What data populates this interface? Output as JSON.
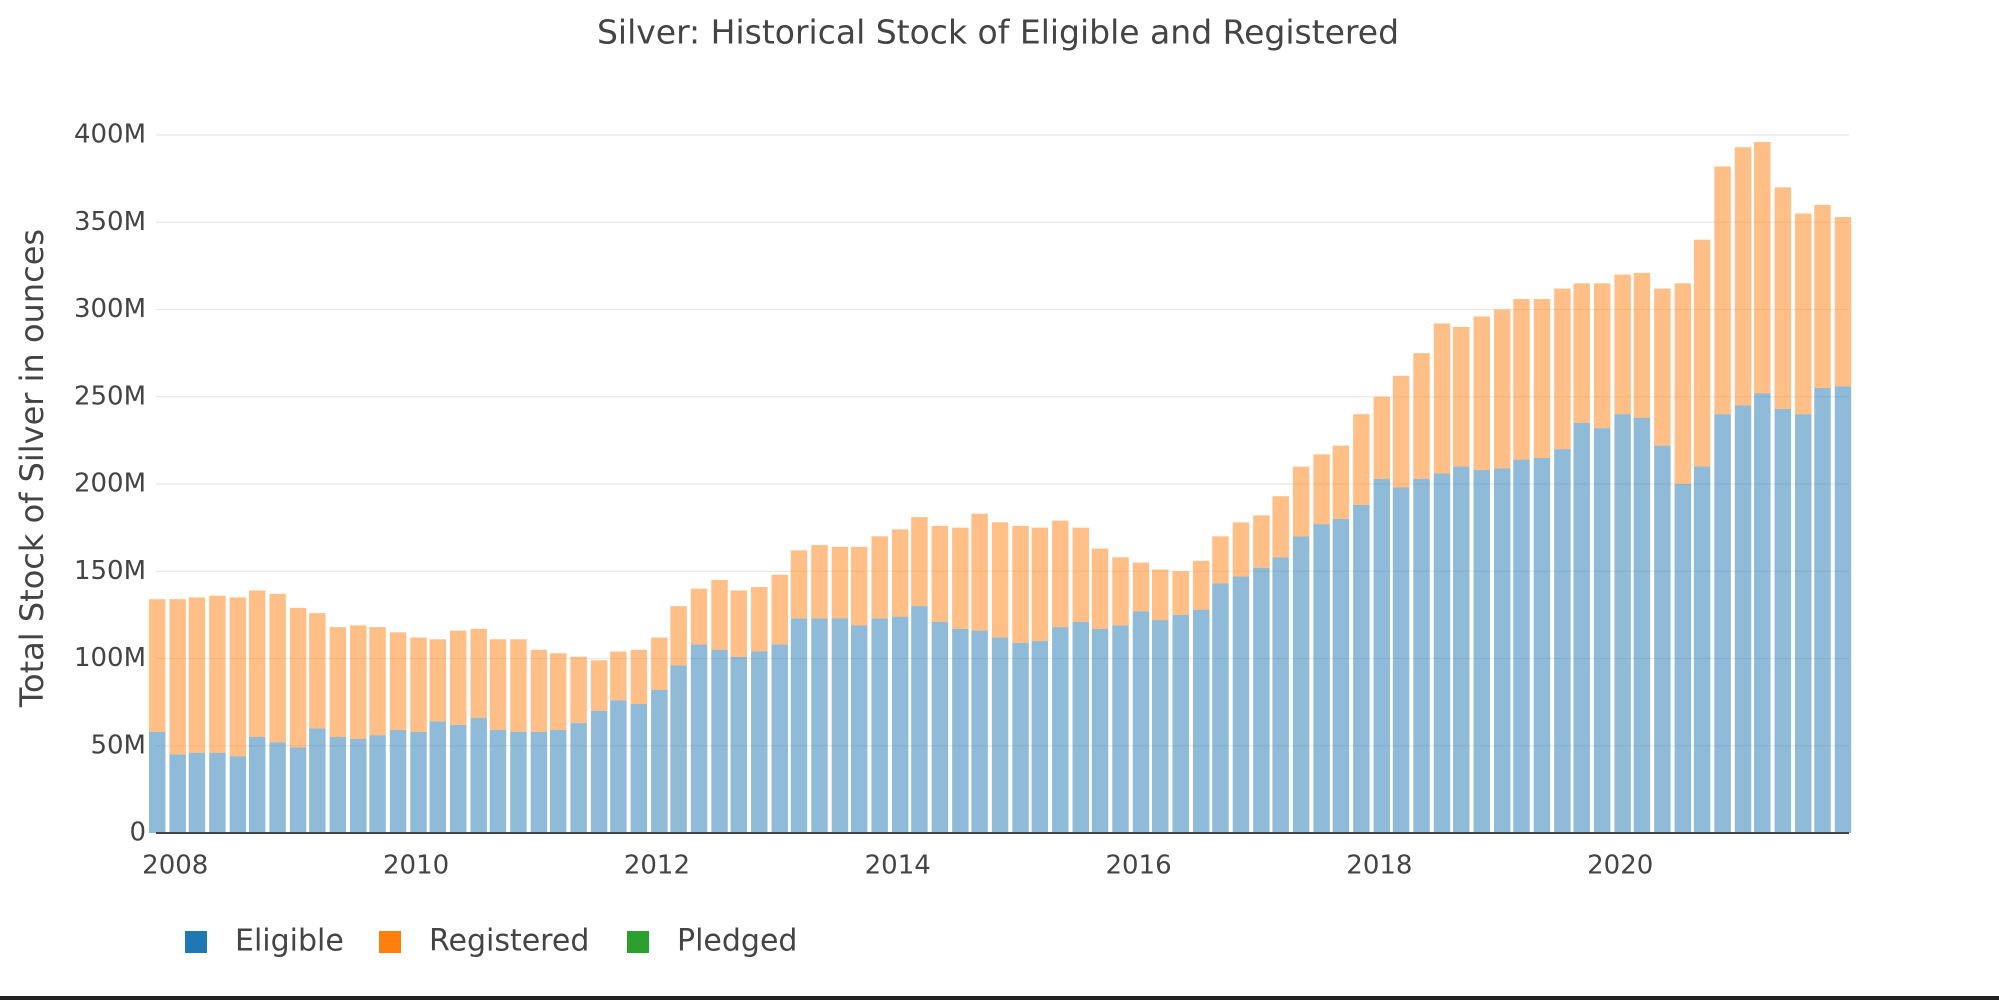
{
  "chart_data": {
    "type": "stacked_bar",
    "title": "Silver: Historical Stock of Eligible and Registered",
    "y_label": "Total Stock of Silver in ounces",
    "x": [
      2007.85,
      2008.02,
      2008.18,
      2008.35,
      2008.52,
      2008.68,
      2008.85,
      2009.02,
      2009.18,
      2009.35,
      2009.52,
      2009.68,
      2009.85,
      2010.02,
      2010.18,
      2010.35,
      2010.52,
      2010.68,
      2010.85,
      2011.02,
      2011.18,
      2011.35,
      2011.52,
      2011.68,
      2011.85,
      2012.02,
      2012.18,
      2012.35,
      2012.52,
      2012.68,
      2012.85,
      2013.02,
      2013.18,
      2013.35,
      2013.52,
      2013.68,
      2013.85,
      2014.02,
      2014.18,
      2014.35,
      2014.52,
      2014.68,
      2014.85,
      2015.02,
      2015.18,
      2015.35,
      2015.52,
      2015.68,
      2015.85,
      2016.02,
      2016.18,
      2016.35,
      2016.52,
      2016.68,
      2016.85,
      2017.02,
      2017.18,
      2017.35,
      2017.52,
      2017.68,
      2017.85,
      2018.02,
      2018.18,
      2018.35,
      2018.52,
      2018.68,
      2018.85,
      2019.02,
      2019.18,
      2019.35,
      2019.52,
      2019.68,
      2019.85,
      2020.02,
      2020.18,
      2020.35,
      2020.52,
      2020.68,
      2020.85,
      2021.02,
      2021.18,
      2021.35,
      2021.52,
      2021.68,
      2021.85
    ],
    "series": [
      {
        "name": "Eligible",
        "color": "#1f77b4",
        "values": [
          58000000,
          45000000,
          46000000,
          46000000,
          44000000,
          55000000,
          52000000,
          49000000,
          60000000,
          55000000,
          54000000,
          56000000,
          59000000,
          58000000,
          64000000,
          62000000,
          66000000,
          59000000,
          58000000,
          58000000,
          59000000,
          63000000,
          70000000,
          76000000,
          74000000,
          82000000,
          96000000,
          108000000,
          105000000,
          101000000,
          104000000,
          108000000,
          123000000,
          123000000,
          123000000,
          119000000,
          123000000,
          124000000,
          130000000,
          121000000,
          117000000,
          116000000,
          112000000,
          109000000,
          110000000,
          118000000,
          121000000,
          117000000,
          119000000,
          127000000,
          122000000,
          125000000,
          128000000,
          143000000,
          147000000,
          152000000,
          158000000,
          170000000,
          177000000,
          180000000,
          188000000,
          203000000,
          198000000,
          203000000,
          206000000,
          210000000,
          208000000,
          209000000,
          214000000,
          215000000,
          220000000,
          235000000,
          232000000,
          240000000,
          238000000,
          222000000,
          200000000,
          210000000,
          240000000,
          245000000,
          252000000,
          243000000,
          240000000,
          255000000,
          256000000
        ]
      },
      {
        "name": "Registered",
        "color": "#ff7f0e",
        "values": [
          76000000,
          89000000,
          89000000,
          90000000,
          91000000,
          84000000,
          85000000,
          80000000,
          66000000,
          63000000,
          65000000,
          62000000,
          56000000,
          54000000,
          47000000,
          54000000,
          51000000,
          52000000,
          53000000,
          47000000,
          44000000,
          38000000,
          29000000,
          28000000,
          31000000,
          30000000,
          34000000,
          32000000,
          40000000,
          38000000,
          37000000,
          40000000,
          39000000,
          42000000,
          41000000,
          45000000,
          47000000,
          50000000,
          51000000,
          55000000,
          58000000,
          67000000,
          66000000,
          67000000,
          65000000,
          61000000,
          54000000,
          46000000,
          39000000,
          28000000,
          29000000,
          25000000,
          28000000,
          27000000,
          31000000,
          30000000,
          35000000,
          40000000,
          40000000,
          42000000,
          52000000,
          47000000,
          64000000,
          72000000,
          86000000,
          80000000,
          88000000,
          91000000,
          92000000,
          91000000,
          92000000,
          80000000,
          83000000,
          80000000,
          83000000,
          90000000,
          115000000,
          130000000,
          142000000,
          148000000,
          144000000,
          127000000,
          115000000,
          105000000,
          97000000
        ]
      },
      {
        "name": "Pledged",
        "color": "#2ca02c",
        "values": [
          0,
          0,
          0,
          0,
          0,
          0,
          0,
          0,
          0,
          0,
          0,
          0,
          0,
          0,
          0,
          0,
          0,
          0,
          0,
          0,
          0,
          0,
          0,
          0,
          0,
          0,
          0,
          0,
          0,
          0,
          0,
          0,
          0,
          0,
          0,
          0,
          0,
          0,
          0,
          0,
          0,
          0,
          0,
          0,
          0,
          0,
          0,
          0,
          0,
          0,
          0,
          0,
          0,
          0,
          0,
          0,
          0,
          0,
          0,
          0,
          0,
          0,
          0,
          0,
          0,
          0,
          0,
          0,
          0,
          0,
          0,
          0,
          0,
          0,
          0,
          0,
          0,
          0,
          0,
          0,
          0,
          0,
          0,
          0,
          0
        ]
      }
    ],
    "xlim": [
      2007.84,
      2021.9
    ],
    "xticks": [
      2008,
      2010,
      2012,
      2014,
      2016,
      2018,
      2020
    ],
    "ylim": [
      0,
      400000000
    ],
    "yticks": [
      0,
      {
        "value": 50000000,
        "label": "50M"
      },
      {
        "value": 100000000,
        "label": "100M"
      },
      {
        "value": 150000000,
        "label": "150M"
      },
      {
        "value": 200000000,
        "label": "200M"
      },
      {
        "value": 250000000,
        "label": "250M"
      },
      {
        "value": 300000000,
        "label": "300M"
      },
      {
        "value": 350000000,
        "label": "350M"
      },
      {
        "value": 400000000,
        "label": "400M"
      }
    ],
    "grid": true,
    "legend": "bottom-left"
  }
}
